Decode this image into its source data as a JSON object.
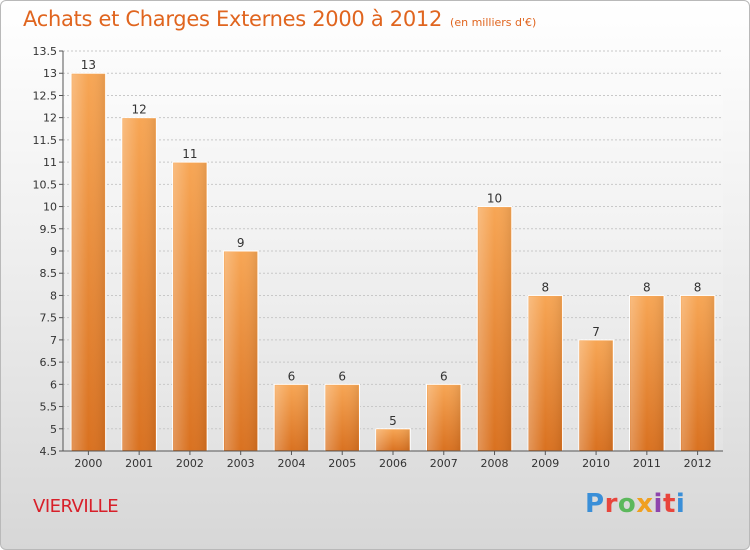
{
  "title": "Achats et Charges Externes 2000 à 2012",
  "subtitle": "(en milliers d'€)",
  "place": "VIERVILLE",
  "logo": {
    "p1": "P",
    "p2": "r",
    "p3": "o",
    "p4": "x",
    "p5": "i",
    "p6": "t",
    "p7": "i"
  },
  "colors": {
    "bar_top": "#f7a655",
    "bar_bottom": "#d97120",
    "title": "#e0651f",
    "place": "#d8202a"
  },
  "chart_data": {
    "type": "bar",
    "title": "Achats et Charges Externes 2000 à 2012",
    "subtitle": "(en milliers d'€)",
    "categories": [
      "2000",
      "2001",
      "2002",
      "2003",
      "2004",
      "2005",
      "2006",
      "2007",
      "2008",
      "2009",
      "2010",
      "2011",
      "2012"
    ],
    "values": [
      13,
      12,
      11,
      9,
      6,
      6,
      5,
      6,
      10,
      8,
      7,
      8,
      8
    ],
    "ylim": [
      4.5,
      13.5
    ],
    "yticks": [
      "4.5",
      "5",
      "5.5",
      "6",
      "6.5",
      "7",
      "7.5",
      "8",
      "8.5",
      "9",
      "9.5",
      "10",
      "10.5",
      "11",
      "11.5",
      "12",
      "12.5",
      "13",
      "13.5"
    ],
    "grid": true,
    "legend": "none"
  }
}
